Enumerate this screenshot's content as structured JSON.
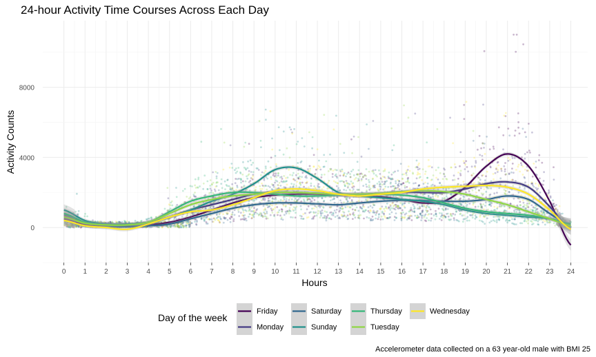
{
  "chart_data": {
    "type": "scatter",
    "title": "24-hour Activity Time Courses Across Each Day",
    "xlabel": "Hours",
    "ylabel": "Activity Counts",
    "caption": "Accelerometer data collected on a 63 year-old male with BMI 25",
    "xlim": [
      -1,
      24.8
    ],
    "ylim": [
      -2000,
      11800
    ],
    "x_ticks": [
      "0",
      "1",
      "2",
      "3",
      "4",
      "5",
      "6",
      "7",
      "8",
      "9",
      "10",
      "11",
      "12",
      "13",
      "14",
      "15",
      "16",
      "17",
      "18",
      "19",
      "20",
      "21",
      "22",
      "23",
      "24"
    ],
    "y_ticks": [
      {
        "value": 0,
        "label": "0"
      },
      {
        "value": 4000,
        "label": "4000"
      },
      {
        "value": 8000,
        "label": "8000"
      }
    ],
    "grid": true,
    "legend": {
      "title": "Day of the week",
      "position": "bottom",
      "entries": [
        {
          "name": "Friday",
          "color": "#440154"
        },
        {
          "name": "Monday",
          "color": "#443A83"
        },
        {
          "name": "Saturday",
          "color": "#31688E"
        },
        {
          "name": "Sunday",
          "color": "#21908C"
        },
        {
          "name": "Thursday",
          "color": "#35B779"
        },
        {
          "name": "Tuesday",
          "color": "#8FD744"
        },
        {
          "name": "Wednesday",
          "color": "#FDE725"
        }
      ]
    },
    "series": [
      {
        "name": "Friday",
        "color": "#440154",
        "x": [
          0,
          1,
          2,
          3,
          4,
          5,
          6,
          7,
          8,
          9,
          10,
          11,
          12,
          13,
          14,
          15,
          16,
          17,
          18,
          19,
          20,
          21,
          22,
          23,
          24
        ],
        "y": [
          500,
          150,
          100,
          80,
          150,
          300,
          600,
          1000,
          1400,
          1700,
          1850,
          1900,
          1900,
          1850,
          1800,
          1750,
          1600,
          1400,
          1500,
          2300,
          3500,
          4200,
          3500,
          1500,
          -1000
        ]
      },
      {
        "name": "Monday",
        "color": "#443A83",
        "x": [
          0,
          1,
          2,
          3,
          4,
          5,
          6,
          7,
          8,
          9,
          10,
          11,
          12,
          13,
          14,
          15,
          16,
          17,
          18,
          19,
          20,
          21,
          22,
          23,
          24
        ],
        "y": [
          700,
          300,
          200,
          150,
          250,
          600,
          1000,
          1300,
          1600,
          1900,
          2000,
          2000,
          1950,
          1900,
          1900,
          1950,
          2000,
          2000,
          2000,
          2200,
          2500,
          2600,
          2300,
          1200,
          -100
        ]
      },
      {
        "name": "Saturday",
        "color": "#31688E",
        "x": [
          0,
          1,
          2,
          3,
          4,
          5,
          6,
          7,
          8,
          9,
          10,
          11,
          12,
          13,
          14,
          15,
          16,
          17,
          18,
          19,
          20,
          21,
          22,
          23,
          24
        ],
        "y": [
          400,
          100,
          50,
          50,
          100,
          200,
          500,
          800,
          1100,
          1300,
          1400,
          1400,
          1350,
          1300,
          1400,
          1500,
          1550,
          1550,
          1500,
          1500,
          1600,
          1800,
          1600,
          800,
          100
        ]
      },
      {
        "name": "Sunday",
        "color": "#21908C",
        "x": [
          0,
          1,
          2,
          3,
          4,
          5,
          6,
          7,
          8,
          9,
          10,
          11,
          12,
          13,
          14,
          15,
          16,
          17,
          18,
          19,
          20,
          21,
          22,
          23,
          24
        ],
        "y": [
          1000,
          400,
          200,
          200,
          300,
          600,
          1000,
          1500,
          1900,
          2500,
          3300,
          3400,
          2800,
          2000,
          1800,
          1700,
          1600,
          1500,
          1300,
          1000,
          800,
          700,
          600,
          500,
          200
        ]
      },
      {
        "name": "Thursday",
        "color": "#35B779",
        "x": [
          0,
          1,
          2,
          3,
          4,
          5,
          6,
          7,
          8,
          9,
          10,
          11,
          12,
          13,
          14,
          15,
          16,
          17,
          18,
          19,
          20,
          21,
          22,
          23,
          24
        ],
        "y": [
          800,
          300,
          150,
          150,
          300,
          900,
          1500,
          1800,
          2000,
          2000,
          1900,
          1800,
          1800,
          1850,
          1900,
          1900,
          1850,
          1700,
          1400,
          1100,
          900,
          800,
          700,
          500,
          200
        ]
      },
      {
        "name": "Tuesday",
        "color": "#8FD744",
        "x": [
          0,
          1,
          2,
          3,
          4,
          5,
          6,
          7,
          8,
          9,
          10,
          11,
          12,
          13,
          14,
          15,
          16,
          17,
          18,
          19,
          20,
          21,
          22,
          23,
          24
        ],
        "y": [
          600,
          250,
          150,
          150,
          300,
          800,
          1300,
          1600,
          1800,
          1900,
          2000,
          2000,
          1950,
          1900,
          1900,
          1950,
          2050,
          2100,
          2050,
          1900,
          1600,
          1300,
          900,
          500,
          100
        ]
      },
      {
        "name": "Wednesday",
        "color": "#FDE725",
        "x": [
          0,
          1,
          2,
          3,
          4,
          5,
          6,
          7,
          8,
          9,
          10,
          11,
          12,
          13,
          14,
          15,
          16,
          17,
          18,
          19,
          20,
          21,
          22,
          23,
          24
        ],
        "y": [
          400,
          100,
          0,
          -100,
          200,
          600,
          900,
          1000,
          1300,
          1700,
          2100,
          2200,
          2100,
          1900,
          1800,
          1900,
          2000,
          2200,
          2300,
          2350,
          2400,
          2300,
          1900,
          1000,
          -100
        ]
      }
    ]
  }
}
